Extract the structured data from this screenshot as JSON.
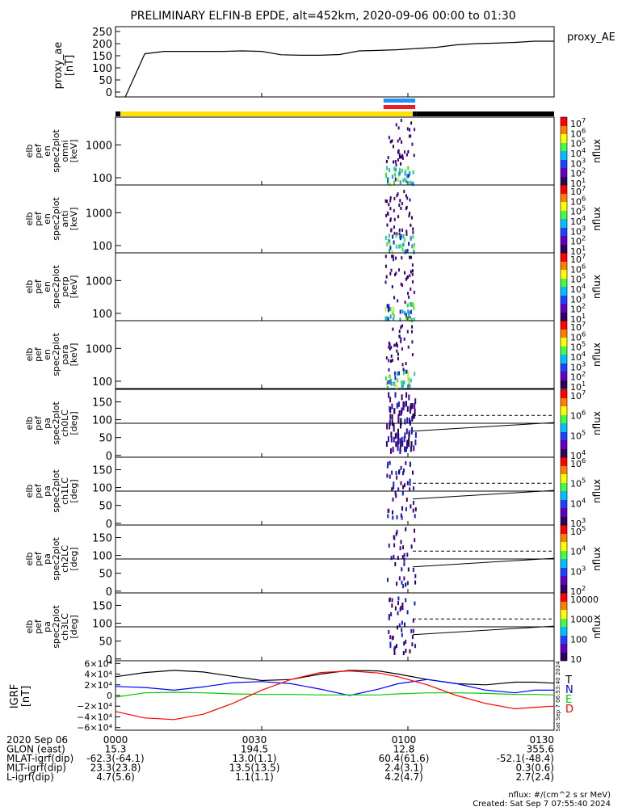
{
  "title": "PRELIMINARY ELFIN-B EPDE, alt=452km, 2020-09-06 00:00 to 01:30",
  "chart_data": [
    {
      "type": "line",
      "name": "proxy_ae",
      "ylabel_lines": [
        "proxy_ae",
        "[nT]"
      ],
      "legend": "proxy_AE",
      "ylim": [
        -20,
        270
      ],
      "yticks": [
        "250",
        "200",
        "150",
        "100",
        "50",
        "0"
      ],
      "ytick_values": [
        250,
        200,
        150,
        100,
        50,
        0
      ],
      "x_minutes": [
        2,
        6,
        10,
        14,
        18,
        22,
        26,
        30,
        34,
        38,
        42,
        46,
        50,
        54,
        58,
        62,
        66,
        70,
        74,
        78,
        82,
        86,
        90
      ],
      "values": [
        -20,
        158,
        168,
        168,
        168,
        168,
        170,
        168,
        154,
        152,
        152,
        155,
        170,
        172,
        175,
        180,
        185,
        195,
        200,
        202,
        205,
        210,
        210
      ]
    },
    {
      "type": "bar",
      "name": "status-bars",
      "segments": [
        {
          "start_min": 0,
          "end_min": 1,
          "color": "#000000"
        },
        {
          "start_min": 1,
          "end_min": 61,
          "color": "#ffe000"
        },
        {
          "start_min": 61,
          "end_min": 61.8,
          "color": "#000000"
        },
        {
          "start_min": 61.8,
          "end_min": 90,
          "color": "#000000"
        }
      ],
      "markers": [
        {
          "start_min": 55,
          "end_min": 61.5,
          "color": "#1e90ff",
          "row": "top"
        },
        {
          "start_min": 55,
          "end_min": 61.5,
          "color": "#ee1c24",
          "row": "bottom"
        }
      ]
    },
    {
      "type": "heatmap",
      "name": "spec-omni",
      "ylabel_lines": [
        "elb",
        "pef",
        "en",
        "spec2plot",
        "omni",
        "[keV]"
      ],
      "yscale": "log",
      "ylim": [
        60,
        7000
      ],
      "yticks": [
        "1000",
        "100"
      ],
      "ytick_values": [
        1000,
        100
      ],
      "colorbar_label": "nflux",
      "colorbar_ticks": [
        "10^7",
        "10^6",
        "10^5",
        "10^4",
        "10^3",
        "10^2",
        "10^1"
      ],
      "active_window_min": [
        55.2,
        61.2
      ]
    },
    {
      "type": "heatmap",
      "name": "spec-anti",
      "ylabel_lines": [
        "elb",
        "pef",
        "en",
        "spec2plot",
        "anti",
        "[keV]"
      ],
      "yscale": "log",
      "ylim": [
        60,
        7000
      ],
      "yticks": [
        "1000",
        "100"
      ],
      "ytick_values": [
        1000,
        100
      ],
      "colorbar_label": "nflux",
      "colorbar_ticks": [
        "10^7",
        "10^6",
        "10^5",
        "10^4",
        "10^3",
        "10^2",
        "10^1"
      ],
      "active_window_min": [
        55.2,
        61.2
      ]
    },
    {
      "type": "heatmap",
      "name": "spec-perp",
      "ylabel_lines": [
        "elb",
        "pef",
        "en",
        "spec2plot",
        "perp",
        "[keV]"
      ],
      "yscale": "log",
      "ylim": [
        60,
        7000
      ],
      "yticks": [
        "1000",
        "100"
      ],
      "ytick_values": [
        1000,
        100
      ],
      "colorbar_label": "nflux",
      "colorbar_ticks": [
        "10^7",
        "10^6",
        "10^5",
        "10^4",
        "10^3",
        "10^2",
        "10^1"
      ],
      "active_window_min": [
        55.2,
        61.2
      ]
    },
    {
      "type": "heatmap",
      "name": "spec-para",
      "ylabel_lines": [
        "elb",
        "pef",
        "en",
        "spec2plot",
        "para",
        "[keV]"
      ],
      "yscale": "log",
      "ylim": [
        60,
        7000
      ],
      "yticks": [
        "1000",
        "100"
      ],
      "ytick_values": [
        1000,
        100
      ],
      "colorbar_label": "nflux",
      "colorbar_ticks": [
        "10^7",
        "10^6",
        "10^5",
        "10^4",
        "10^3",
        "10^2",
        "10^1"
      ],
      "active_window_min": [
        55.2,
        61.2
      ]
    },
    {
      "type": "heatmap",
      "name": "pa-ch0",
      "ylabel_lines": [
        "elb",
        "pef",
        "pa",
        "spec2plot",
        "ch0LC",
        "[deg]"
      ],
      "ylim": [
        -5,
        185
      ],
      "yticks": [
        "150",
        "100",
        "50",
        "0"
      ],
      "ytick_values": [
        150,
        100,
        50,
        0
      ],
      "hline": 90,
      "lc_solid": [
        [
          61,
          68
        ],
        [
          90,
          92
        ]
      ],
      "lc_dashed": [
        [
          61,
          112
        ],
        [
          90,
          112
        ]
      ],
      "colorbar_label": "nflux",
      "colorbar_ticks": [
        "10^7",
        "10^6",
        "10^5",
        "10^4"
      ],
      "active_window_min": [
        55.5,
        61.5
      ]
    },
    {
      "type": "heatmap",
      "name": "pa-ch1",
      "ylabel_lines": [
        "elb",
        "pef",
        "pa",
        "spec2plot",
        "ch1LC",
        "[deg]"
      ],
      "ylim": [
        -5,
        185
      ],
      "yticks": [
        "150",
        "100",
        "50",
        "0"
      ],
      "ytick_values": [
        150,
        100,
        50,
        0
      ],
      "hline": 90,
      "lc_solid": [
        [
          61,
          68
        ],
        [
          90,
          92
        ]
      ],
      "lc_dashed": [
        [
          61,
          112
        ],
        [
          90,
          112
        ]
      ],
      "colorbar_label": "nflux",
      "colorbar_ticks": [
        "10^6",
        "10^5",
        "10^4",
        "10^3"
      ],
      "active_window_min": [
        55.5,
        61.5
      ]
    },
    {
      "type": "heatmap",
      "name": "pa-ch2",
      "ylabel_lines": [
        "elb",
        "pef",
        "pa",
        "spec2plot",
        "ch2LC",
        "[deg]"
      ],
      "ylim": [
        -5,
        185
      ],
      "yticks": [
        "150",
        "100",
        "50",
        "0"
      ],
      "ytick_values": [
        150,
        100,
        50,
        0
      ],
      "hline": 90,
      "lc_solid": [
        [
          61,
          68
        ],
        [
          90,
          92
        ]
      ],
      "lc_dashed": [
        [
          61,
          112
        ],
        [
          90,
          112
        ]
      ],
      "colorbar_label": "nflux",
      "colorbar_ticks": [
        "10^5",
        "10^4",
        "10^3",
        "10^2"
      ],
      "active_window_min": [
        55.5,
        61.5
      ]
    },
    {
      "type": "heatmap",
      "name": "pa-ch3",
      "ylabel_lines": [
        "elb",
        "pef",
        "pa",
        "spec2plot",
        "ch3LC",
        "[deg]"
      ],
      "ylim": [
        -5,
        185
      ],
      "yticks": [
        "150",
        "100",
        "50",
        "0"
      ],
      "ytick_values": [
        150,
        100,
        50,
        0
      ],
      "hline": 90,
      "lc_solid": [
        [
          61,
          68
        ],
        [
          90,
          92
        ]
      ],
      "lc_dashed": [
        [
          61,
          112
        ],
        [
          90,
          112
        ]
      ],
      "colorbar_label": "nflux",
      "colorbar_ticks": [
        "10000",
        "1000",
        "100",
        "10"
      ],
      "active_window_min": [
        55.5,
        61.5
      ]
    },
    {
      "type": "line",
      "name": "igrf",
      "ylabel_lines": [
        "IGRF",
        "[nT]"
      ],
      "ylim": [
        -65000,
        65000
      ],
      "yticks": [
        "6×10⁴",
        "4×10⁴",
        "2×10⁴",
        "0",
        "−2×10⁴",
        "−4×10⁴",
        "−6×10⁴"
      ],
      "ytick_values": [
        60000,
        40000,
        20000,
        0,
        -20000,
        -40000,
        -60000
      ],
      "x_minutes": [
        0,
        6,
        12,
        18,
        24,
        30,
        36,
        42,
        48,
        54,
        58,
        64,
        70,
        76,
        82,
        86,
        90
      ],
      "series": [
        {
          "name": "T",
          "color": "#000000",
          "values": [
            35000,
            43000,
            47000,
            44000,
            36000,
            28000,
            30000,
            40000,
            47000,
            46000,
            40000,
            30000,
            22000,
            20000,
            25000,
            25000,
            23000
          ]
        },
        {
          "name": "N",
          "color": "#0000ff",
          "values": [
            17000,
            15000,
            10000,
            16000,
            24000,
            26000,
            22000,
            12000,
            0,
            12000,
            22000,
            30000,
            22000,
            10000,
            5000,
            10000,
            10000
          ]
        },
        {
          "name": "E",
          "color": "#00cc00",
          "values": [
            -3000,
            5000,
            6000,
            5000,
            3000,
            2000,
            2000,
            1000,
            1000,
            1000,
            3000,
            5000,
            5000,
            4000,
            2000,
            2000,
            1000
          ]
        },
        {
          "name": "D",
          "color": "#ff0000",
          "values": [
            -30000,
            -42000,
            -45000,
            -35000,
            -15000,
            10000,
            30000,
            43000,
            46000,
            42000,
            35000,
            20000,
            0,
            -15000,
            -25000,
            -22000,
            -20000
          ]
        }
      ],
      "green_baseline": 0,
      "side_text": "Sat Sep 7 06:53:40 2024"
    }
  ],
  "xaxis": {
    "ticks": [
      {
        "min": 0,
        "label": "0000"
      },
      {
        "min": 30,
        "label": "0030"
      },
      {
        "min": 60,
        "label": "0100"
      },
      {
        "min": 90,
        "label": "0130"
      }
    ]
  },
  "info_table": [
    {
      "label": "2020 Sep 06",
      "values": [
        "0000",
        "0030",
        "0100",
        "0130"
      ]
    },
    {
      "label": "GLON (east)",
      "values": [
        "15.3",
        "194.5",
        "12.8",
        "355.6"
      ]
    },
    {
      "label": "MLAT-igrf(dip)",
      "values": [
        "-62.3(-64.1)",
        "13.0(1.1)",
        "60.4(61.6)",
        "-52.1(-48.4)"
      ]
    },
    {
      "label": "MLT-igrf(dip)",
      "values": [
        "23.3(23.8)",
        "13.5(13.5)",
        "2.4(3.1)",
        "0.3(0.6)"
      ]
    },
    {
      "label": "L-igrf(dip)",
      "values": [
        "4.7(5.6)",
        "1.1(1.1)",
        "4.2(4.7)",
        "2.7(2.4)"
      ]
    }
  ],
  "footer": {
    "units": "nflux: #/(cm^2 s sr MeV)",
    "created": "Created: Sat Sep  7 07:55:40 2024"
  }
}
